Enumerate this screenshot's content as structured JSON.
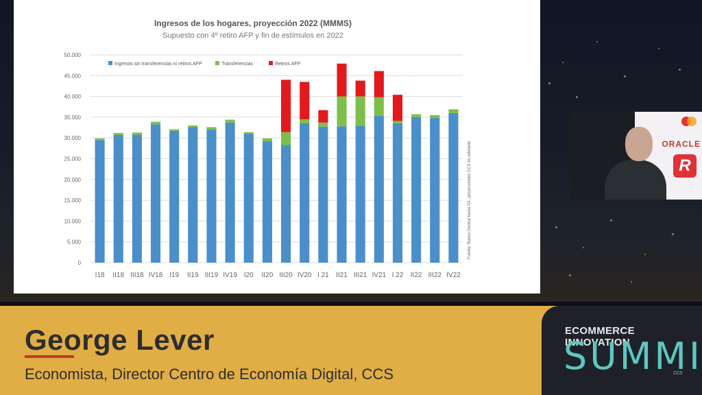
{
  "chart_data": {
    "type": "bar",
    "stacked": true,
    "title": "Ingresos de los hogares, proyección 2022 (MMMS)",
    "subtitle": "Supuesto con 4º retiro AFP y fin de estímulos en 2022",
    "ylim": [
      0,
      50000
    ],
    "yticks": [
      "0",
      "5.000",
      "10.000",
      "15.000",
      "20.000",
      "25.000",
      "30.000",
      "35.000",
      "40.000",
      "45.000",
      "50.000"
    ],
    "grid": true,
    "legend_position": "top-left",
    "categories": [
      "I18",
      "II18",
      "III18",
      "IV18",
      "I19",
      "II19",
      "III19",
      "IV19",
      "I20",
      "II20",
      "III20",
      "IV20",
      "I 21",
      "II21",
      "III21",
      "IV21",
      "I 22",
      "II22",
      "III22",
      "IV22"
    ],
    "series": [
      {
        "name": "Ingresos sin transferencias ni retiros AFP",
        "color": "#4a8fc9",
        "values": [
          29500,
          30700,
          30800,
          33300,
          31700,
          32600,
          32000,
          33700,
          31000,
          29200,
          28300,
          33500,
          32700,
          32800,
          32900,
          35300,
          33500,
          35000,
          34800,
          36000
        ]
      },
      {
        "name": "Transferencias",
        "color": "#7cc04b",
        "values": [
          400,
          500,
          500,
          600,
          400,
          400,
          600,
          700,
          400,
          700,
          3100,
          1000,
          1000,
          7200,
          7100,
          4500,
          600,
          700,
          700,
          900
        ]
      },
      {
        "name": "Retiros AFP",
        "color": "#e31a1c",
        "values": [
          0,
          0,
          0,
          0,
          0,
          0,
          0,
          0,
          0,
          0,
          12600,
          9000,
          3000,
          7900,
          3800,
          6300,
          6300,
          0,
          0,
          0
        ]
      }
    ],
    "source_note": "Fuente: Banco Central hasta I21, proyecciones CCS en adelante"
  },
  "lower_third": {
    "name": "George Lever",
    "title": "Economista, Director Centro de Economía Digital, CCS"
  },
  "event_logo": {
    "top": "ECOMMERCE INNOVATION",
    "main": "SUMMIT",
    "sub": "ccs"
  },
  "video_inset": {
    "sponsor_text": "ORACLE",
    "sponsor_letter": "R"
  },
  "colors": {
    "lower_third_bg": "#e0ae44",
    "accent_red": "#c0392b",
    "logo_teal": "#5ec7c0"
  }
}
